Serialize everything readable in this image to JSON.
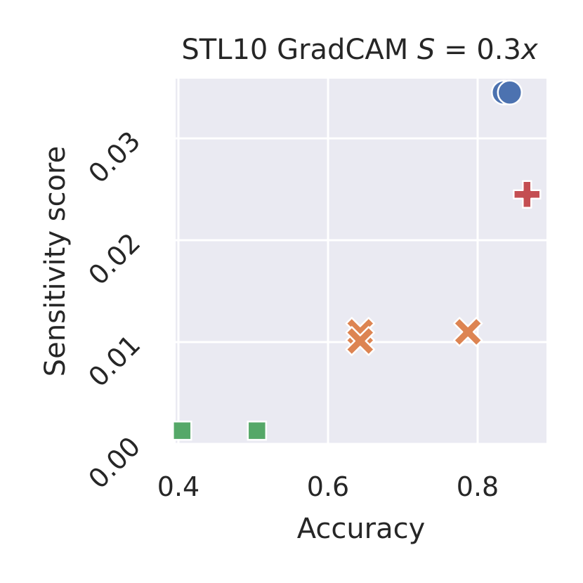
{
  "chart_data": {
    "type": "scatter",
    "title": "STL10 GradCAM ",
    "title_math": {
      "var": "S",
      "rhs": "0.3",
      "rhs_var": "x"
    },
    "xlabel": "Accuracy",
    "ylabel": "Sensitivity score",
    "xlim": [
      0.4,
      0.9
    ],
    "ylim": [
      0.0,
      0.036
    ],
    "xticks": [
      "0.4",
      "0.6",
      "0.8"
    ],
    "yticks": [
      "0.00",
      "0.01",
      "0.02",
      "0.03"
    ],
    "grid": true,
    "legend": "none",
    "series": [
      {
        "marker": "circle",
        "color": "#4c72b0",
        "points": [
          [
            0.835,
            0.0345
          ],
          [
            0.843,
            0.0345
          ]
        ]
      },
      {
        "marker": "x",
        "color": "#dd8452",
        "points": [
          [
            0.643,
            0.011
          ],
          [
            0.643,
            0.0101
          ],
          [
            0.787,
            0.011
          ]
        ]
      },
      {
        "marker": "square",
        "color": "#55a868",
        "points": [
          [
            0.405,
            0.0013
          ],
          [
            0.505,
            0.0013
          ]
        ]
      },
      {
        "marker": "plus",
        "color": "#c44e52",
        "points": [
          [
            0.866,
            0.0245
          ]
        ]
      }
    ]
  }
}
